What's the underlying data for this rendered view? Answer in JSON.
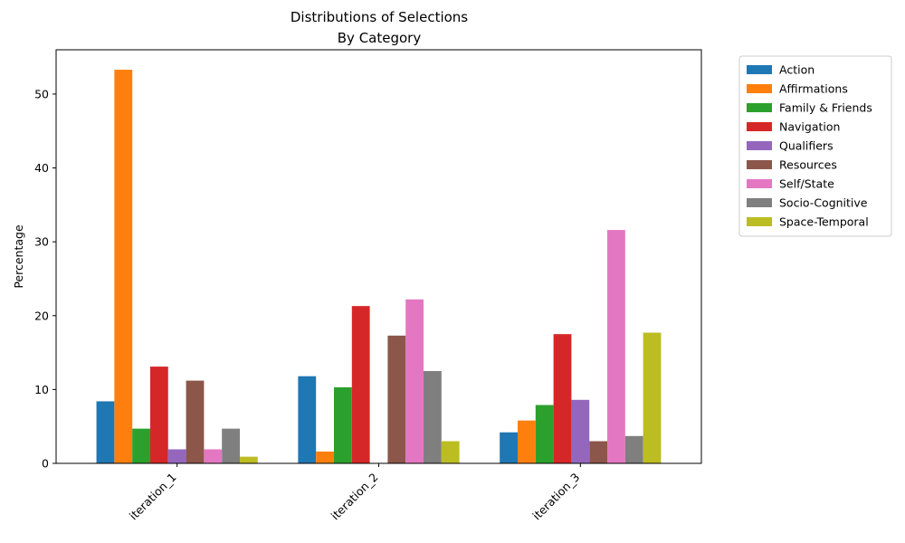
{
  "chart_data": {
    "type": "bar",
    "title": "Distributions of Selections",
    "subtitle": "By Category",
    "xlabel": "",
    "ylabel": "Percentage",
    "ylim": [
      0,
      56
    ],
    "yticks": [
      0,
      10,
      20,
      30,
      40,
      50
    ],
    "grid": false,
    "legend_position": "outside-top-right",
    "categories": [
      "iteration_1",
      "iteration_2",
      "iteration_3"
    ],
    "series": [
      {
        "name": "Action",
        "color": "#1f77b4",
        "values": [
          8.4,
          11.8,
          4.2
        ]
      },
      {
        "name": "Affirmations",
        "color": "#ff7f0e",
        "values": [
          53.3,
          1.6,
          5.8
        ]
      },
      {
        "name": "Family & Friends",
        "color": "#2ca02c",
        "values": [
          4.7,
          10.3,
          7.9
        ]
      },
      {
        "name": "Navigation",
        "color": "#d62728",
        "values": [
          13.1,
          21.3,
          17.5
        ]
      },
      {
        "name": "Qualifiers",
        "color": "#9467bd",
        "values": [
          1.9,
          0.0,
          8.6
        ]
      },
      {
        "name": "Resources",
        "color": "#8c564b",
        "values": [
          11.2,
          17.3,
          3.0
        ]
      },
      {
        "name": "Self/State",
        "color": "#e377c2",
        "values": [
          1.9,
          22.2,
          31.6
        ]
      },
      {
        "name": "Socio-Cognitive",
        "color": "#7f7f7f",
        "values": [
          4.7,
          12.5,
          3.7
        ]
      },
      {
        "name": "Space-Temporal",
        "color": "#bcbd22",
        "values": [
          0.9,
          3.0,
          17.7
        ]
      }
    ]
  }
}
